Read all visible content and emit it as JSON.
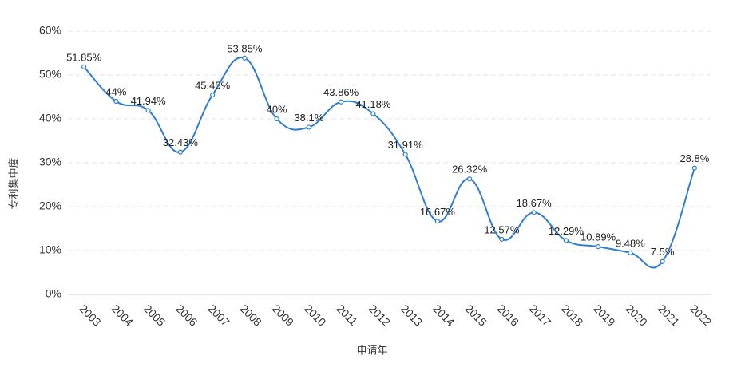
{
  "chart_data": {
    "type": "line",
    "x_label": "申请年",
    "y_label": "专利集中度",
    "categories": [
      "2003",
      "2004",
      "2005",
      "2006",
      "2007",
      "2008",
      "2009",
      "2010",
      "2011",
      "2012",
      "2013",
      "2014",
      "2015",
      "2016",
      "2017",
      "2018",
      "2019",
      "2020",
      "2021",
      "2022"
    ],
    "series": [
      {
        "color": "#2f7ed0",
        "values": [
          51.85,
          44,
          41.94,
          32.43,
          45.45,
          53.85,
          40,
          38.1,
          43.86,
          41.18,
          31.91,
          16.67,
          26.32,
          12.57,
          18.67,
          12.29,
          10.89,
          9.48,
          7.5,
          28.8
        ],
        "value_labels": [
          "51.85%",
          "44%",
          "41.94%",
          "32.43%",
          "45.45%",
          "53.85%",
          "40%",
          "38.1%",
          "43.86%",
          "41.18%",
          "31.91%",
          "16.67%",
          "26.32%",
          "12.57%",
          "18.67%",
          "12.29%",
          "10.89%",
          "9.48%",
          "7.5%",
          "28.8%"
        ]
      }
    ],
    "ylim": [
      0,
      60
    ],
    "yticks": [
      {
        "value": 0,
        "label": "0%"
      },
      {
        "value": 10,
        "label": "10%"
      },
      {
        "value": 20,
        "label": "20%"
      },
      {
        "value": 30,
        "label": "30%"
      },
      {
        "value": 40,
        "label": "40%"
      },
      {
        "value": 50,
        "label": "50%"
      },
      {
        "value": 60,
        "label": "60%"
      }
    ],
    "grid": true
  }
}
